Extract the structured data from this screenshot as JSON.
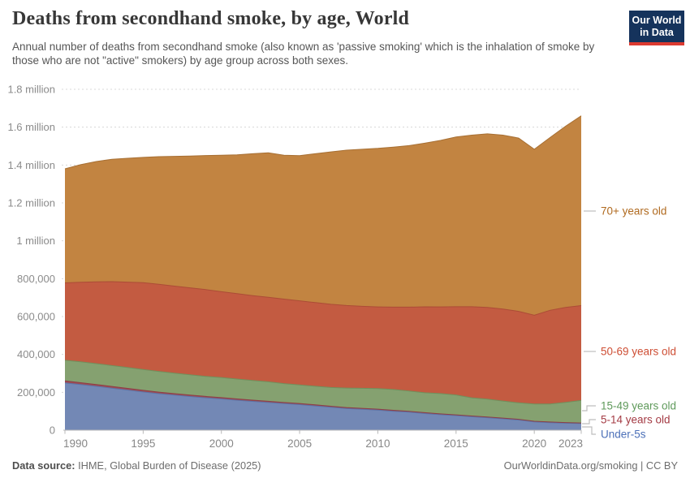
{
  "header": {
    "title": "Deaths from secondhand smoke, by age, World",
    "subtitle": "Annual number of deaths from secondhand smoke (also known as 'passive smoking' which is the inhalation of smoke by those who are not \"active\" smokers) by age group across both sexes.",
    "logo": {
      "line1": "Our World",
      "line2": "in Data"
    }
  },
  "footer": {
    "source_label": "Data source:",
    "source_value": " IHME, Global Burden of Disease (2025)",
    "link": "OurWorldinData.org/smoking",
    "divider": " | ",
    "license": "CC BY"
  },
  "colors": {
    "logo_bg": "#15335C",
    "logo_bar": "#DC3A30",
    "grid": "#d8d8d8",
    "axis": "#b8b8b8",
    "connector": "#bdbdbd"
  },
  "chart_data": {
    "type": "area",
    "stacked": true,
    "order": "bottom-to-top",
    "title": "Deaths from secondhand smoke, by age, World",
    "xlabel": "",
    "ylabel": "",
    "grid": "dashed-horizontal",
    "legend_position": "right",
    "ylim": [
      0,
      1800000
    ],
    "x": [
      1990,
      1991,
      1992,
      1993,
      1994,
      1995,
      1996,
      1997,
      1998,
      1999,
      2000,
      2001,
      2002,
      2003,
      2004,
      2005,
      2006,
      2007,
      2008,
      2009,
      2010,
      2011,
      2012,
      2013,
      2014,
      2015,
      2016,
      2017,
      2018,
      2019,
      2020,
      2021,
      2022,
      2023
    ],
    "x_ticks": [
      1990,
      1995,
      2000,
      2005,
      2010,
      2015,
      2020,
      2023
    ],
    "y_ticks": [
      {
        "value": 0,
        "label": "0"
      },
      {
        "value": 200000,
        "label": "200,000"
      },
      {
        "value": 400000,
        "label": "400,000"
      },
      {
        "value": 600000,
        "label": "600,000"
      },
      {
        "value": 800000,
        "label": "800,000"
      },
      {
        "value": 1000000,
        "label": "1 million"
      },
      {
        "value": 1200000,
        "label": "1.2 million"
      },
      {
        "value": 1400000,
        "label": "1.4 million"
      },
      {
        "value": 1600000,
        "label": "1.6 million"
      },
      {
        "value": 1800000,
        "label": "1.8 million"
      }
    ],
    "series": [
      {
        "name": "Under-5s",
        "fill": "#7388B5",
        "stroke": "#5C73A6",
        "label_color": "#4C70B8",
        "values": [
          250000,
          241000,
          232000,
          222000,
          212000,
          202000,
          193000,
          185000,
          178000,
          171000,
          165000,
          158000,
          152000,
          146000,
          140000,
          135000,
          128000,
          121000,
          114000,
          110000,
          106000,
          100000,
          95000,
          88000,
          82000,
          77000,
          71000,
          66000,
          60000,
          54000,
          44000,
          40000,
          37000,
          35000
        ]
      },
      {
        "name": "5-14 years old",
        "fill": "#A04B52",
        "stroke": "#8C3E48",
        "label_color": "#A43B44",
        "values": [
          10000,
          9700,
          9400,
          9100,
          8800,
          8500,
          8200,
          7900,
          7600,
          7300,
          7000,
          6800,
          6600,
          6400,
          6200,
          6000,
          5800,
          5600,
          5400,
          5200,
          5000,
          4800,
          4600,
          4400,
          4200,
          4000,
          3900,
          3800,
          3700,
          3600,
          3200,
          3100,
          3100,
          3000
        ]
      },
      {
        "name": "15-49 years old",
        "fill": "#85A170",
        "stroke": "#70905C",
        "label_color": "#5F9A5B",
        "values": [
          109000,
          110000,
          110000,
          110000,
          110000,
          110000,
          109000,
          108000,
          107000,
          106000,
          106000,
          105000,
          104000,
          103000,
          100000,
          98000,
          98000,
          99000,
          103000,
          106000,
          109000,
          110000,
          107000,
          105000,
          107000,
          105000,
          96000,
          94000,
          90000,
          87000,
          91000,
          95000,
          107000,
          119000
        ]
      },
      {
        "name": "50-69 years old",
        "fill": "#C35B41",
        "stroke": "#AC4C36",
        "label_color": "#CE4E34",
        "values": [
          409000,
          420000,
          432000,
          443000,
          451000,
          458000,
          460000,
          460000,
          459000,
          458000,
          453000,
          451000,
          448000,
          446000,
          446000,
          444000,
          442000,
          439000,
          436000,
          433000,
          431000,
          435000,
          443000,
          454000,
          458000,
          466000,
          481000,
          484000,
          486000,
          483000,
          469000,
          495000,
          501000,
          501000
        ]
      },
      {
        "name": "70+ years old",
        "fill": "#C28441",
        "stroke": "#A76F33",
        "label_color": "#B06A1F",
        "values": [
          602000,
          621000,
          635000,
          646000,
          654000,
          662000,
          674000,
          685000,
          696000,
          708000,
          721000,
          733000,
          749000,
          763000,
          760000,
          767000,
          786000,
          805000,
          820000,
          829000,
          837000,
          845000,
          853000,
          864000,
          879000,
          896000,
          906000,
          917000,
          918000,
          915000,
          876000,
          912000,
          957000,
          1002000
        ]
      }
    ]
  }
}
